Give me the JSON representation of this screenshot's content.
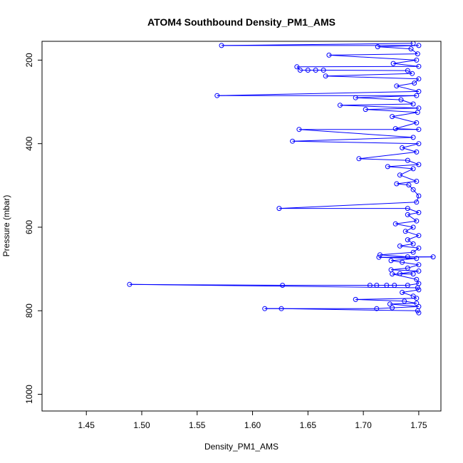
{
  "chart_data": {
    "type": "scatter",
    "title": "ATOM4 Southbound Density_PM1_AMS",
    "xlabel": "Density_PM1_AMS",
    "ylabel": "Pressure (mbar)",
    "xlim": [
      1.41,
      1.77
    ],
    "ylim": [
      1040,
      155
    ],
    "y_reversed": true,
    "connect_points": true,
    "marker": "open-circle",
    "color": "#0000ff",
    "x_ticks": [
      1.45,
      1.5,
      1.55,
      1.6,
      1.65,
      1.7,
      1.75
    ],
    "x_tick_labels": [
      "1.45",
      "1.50",
      "1.55",
      "1.60",
      "1.65",
      "1.70",
      "1.75"
    ],
    "y_ticks": [
      200,
      400,
      600,
      800,
      1000
    ],
    "y_tick_labels": [
      "200",
      "400",
      "600",
      "800",
      "1000"
    ],
    "grid": false,
    "series": [
      {
        "values": [
          {
            "x": 1.75,
            "y": 805
          },
          {
            "x": 1.749,
            "y": 800
          },
          {
            "x": 1.626,
            "y": 795
          },
          {
            "x": 1.611,
            "y": 795
          },
          {
            "x": 1.712,
            "y": 795
          },
          {
            "x": 1.726,
            "y": 793
          },
          {
            "x": 1.75,
            "y": 790
          },
          {
            "x": 1.724,
            "y": 784
          },
          {
            "x": 1.748,
            "y": 782
          },
          {
            "x": 1.737,
            "y": 777
          },
          {
            "x": 1.693,
            "y": 773
          },
          {
            "x": 1.748,
            "y": 770
          },
          {
            "x": 1.745,
            "y": 765
          },
          {
            "x": 1.735,
            "y": 756
          },
          {
            "x": 1.75,
            "y": 750
          },
          {
            "x": 1.749,
            "y": 745
          },
          {
            "x": 1.489,
            "y": 737
          },
          {
            "x": 1.627,
            "y": 739
          },
          {
            "x": 1.706,
            "y": 739
          },
          {
            "x": 1.712,
            "y": 739
          },
          {
            "x": 1.721,
            "y": 739
          },
          {
            "x": 1.728,
            "y": 739
          },
          {
            "x": 1.74,
            "y": 739
          },
          {
            "x": 1.75,
            "y": 735
          },
          {
            "x": 1.748,
            "y": 725
          },
          {
            "x": 1.726,
            "y": 712
          },
          {
            "x": 1.745,
            "y": 712
          },
          {
            "x": 1.733,
            "y": 711
          },
          {
            "x": 1.75,
            "y": 705
          },
          {
            "x": 1.725,
            "y": 702
          },
          {
            "x": 1.74,
            "y": 698
          },
          {
            "x": 1.75,
            "y": 690
          },
          {
            "x": 1.735,
            "y": 684
          },
          {
            "x": 1.725,
            "y": 680
          },
          {
            "x": 1.748,
            "y": 675
          },
          {
            "x": 1.714,
            "y": 672
          },
          {
            "x": 1.763,
            "y": 671
          },
          {
            "x": 1.74,
            "y": 671
          },
          {
            "x": 1.715,
            "y": 666
          },
          {
            "x": 1.745,
            "y": 660
          },
          {
            "x": 1.75,
            "y": 650
          },
          {
            "x": 1.733,
            "y": 645
          },
          {
            "x": 1.745,
            "y": 640
          },
          {
            "x": 1.74,
            "y": 630
          },
          {
            "x": 1.75,
            "y": 620
          },
          {
            "x": 1.738,
            "y": 610
          },
          {
            "x": 1.745,
            "y": 600
          },
          {
            "x": 1.729,
            "y": 592
          },
          {
            "x": 1.748,
            "y": 585
          },
          {
            "x": 1.74,
            "y": 570
          },
          {
            "x": 1.75,
            "y": 565
          },
          {
            "x": 1.74,
            "y": 555
          },
          {
            "x": 1.624,
            "y": 555
          },
          {
            "x": 1.748,
            "y": 540
          },
          {
            "x": 1.75,
            "y": 525
          },
          {
            "x": 1.745,
            "y": 510
          },
          {
            "x": 1.741,
            "y": 499
          },
          {
            "x": 1.73,
            "y": 496
          },
          {
            "x": 1.748,
            "y": 490
          },
          {
            "x": 1.733,
            "y": 475
          },
          {
            "x": 1.745,
            "y": 460
          },
          {
            "x": 1.722,
            "y": 455
          },
          {
            "x": 1.75,
            "y": 450
          },
          {
            "x": 1.74,
            "y": 440
          },
          {
            "x": 1.696,
            "y": 436
          },
          {
            "x": 1.748,
            "y": 420
          },
          {
            "x": 1.735,
            "y": 410
          },
          {
            "x": 1.75,
            "y": 400
          },
          {
            "x": 1.636,
            "y": 394
          },
          {
            "x": 1.745,
            "y": 385
          },
          {
            "x": 1.642,
            "y": 366
          },
          {
            "x": 1.75,
            "y": 366
          },
          {
            "x": 1.729,
            "y": 364
          },
          {
            "x": 1.748,
            "y": 350
          },
          {
            "x": 1.726,
            "y": 335
          },
          {
            "x": 1.749,
            "y": 325
          },
          {
            "x": 1.702,
            "y": 318
          },
          {
            "x": 1.75,
            "y": 315
          },
          {
            "x": 1.679,
            "y": 308
          },
          {
            "x": 1.745,
            "y": 305
          },
          {
            "x": 1.734,
            "y": 295
          },
          {
            "x": 1.693,
            "y": 290
          },
          {
            "x": 1.748,
            "y": 285
          },
          {
            "x": 1.568,
            "y": 285
          },
          {
            "x": 1.75,
            "y": 275
          },
          {
            "x": 1.73,
            "y": 262
          },
          {
            "x": 1.746,
            "y": 255
          },
          {
            "x": 1.75,
            "y": 245
          },
          {
            "x": 1.666,
            "y": 238
          },
          {
            "x": 1.744,
            "y": 232
          },
          {
            "x": 1.74,
            "y": 225
          },
          {
            "x": 1.664,
            "y": 224
          },
          {
            "x": 1.657,
            "y": 224
          },
          {
            "x": 1.65,
            "y": 224
          },
          {
            "x": 1.643,
            "y": 224
          },
          {
            "x": 1.64,
            "y": 216
          },
          {
            "x": 1.75,
            "y": 215
          },
          {
            "x": 1.727,
            "y": 208
          },
          {
            "x": 1.748,
            "y": 200
          },
          {
            "x": 1.669,
            "y": 188
          },
          {
            "x": 1.749,
            "y": 185
          },
          {
            "x": 1.743,
            "y": 173
          },
          {
            "x": 1.713,
            "y": 168
          },
          {
            "x": 1.75,
            "y": 165
          },
          {
            "x": 1.572,
            "y": 165
          },
          {
            "x": 1.745,
            "y": 160
          }
        ]
      }
    ]
  }
}
